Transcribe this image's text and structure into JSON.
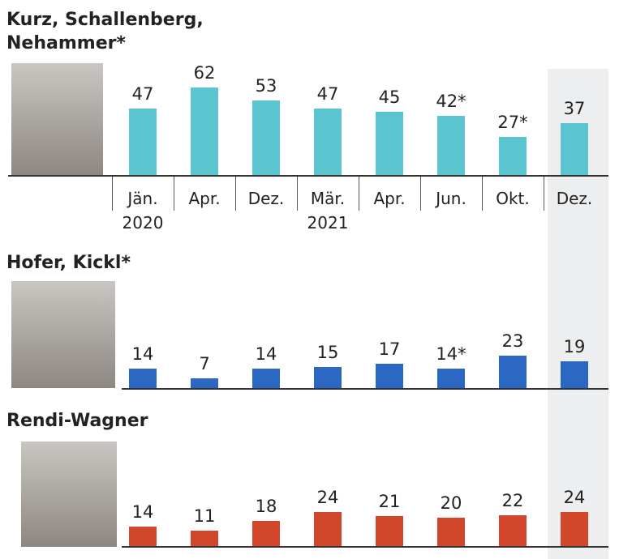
{
  "chart_data": [
    {
      "type": "bar",
      "title": "Kurz, Schallenberg,\nNehammer*",
      "color": "#5bc4d1",
      "categories": [
        "Jän.\n2020",
        "Apr.",
        "Dez.",
        "Mär.\n2021",
        "Apr.",
        "Jun.",
        "Okt.",
        "Dez."
      ],
      "values": [
        47,
        62,
        53,
        47,
        45,
        42,
        27,
        37
      ],
      "value_labels": [
        "47",
        "62",
        "53",
        "47",
        "45",
        "42*",
        "27*",
        "37"
      ]
    },
    {
      "type": "bar",
      "title": "Hofer, Kickl*",
      "color": "#2a68c4",
      "values": [
        14,
        7,
        14,
        15,
        17,
        14,
        23,
        19
      ],
      "value_labels": [
        "14",
        "7",
        "14",
        "15",
        "17",
        "14*",
        "23",
        "19"
      ]
    },
    {
      "type": "bar",
      "title": "Rendi-Wagner",
      "color": "#d2462c",
      "values": [
        14,
        11,
        18,
        24,
        21,
        20,
        22,
        24
      ],
      "value_labels": [
        "14",
        "11",
        "18",
        "24",
        "21",
        "20",
        "22",
        "24"
      ]
    }
  ]
}
